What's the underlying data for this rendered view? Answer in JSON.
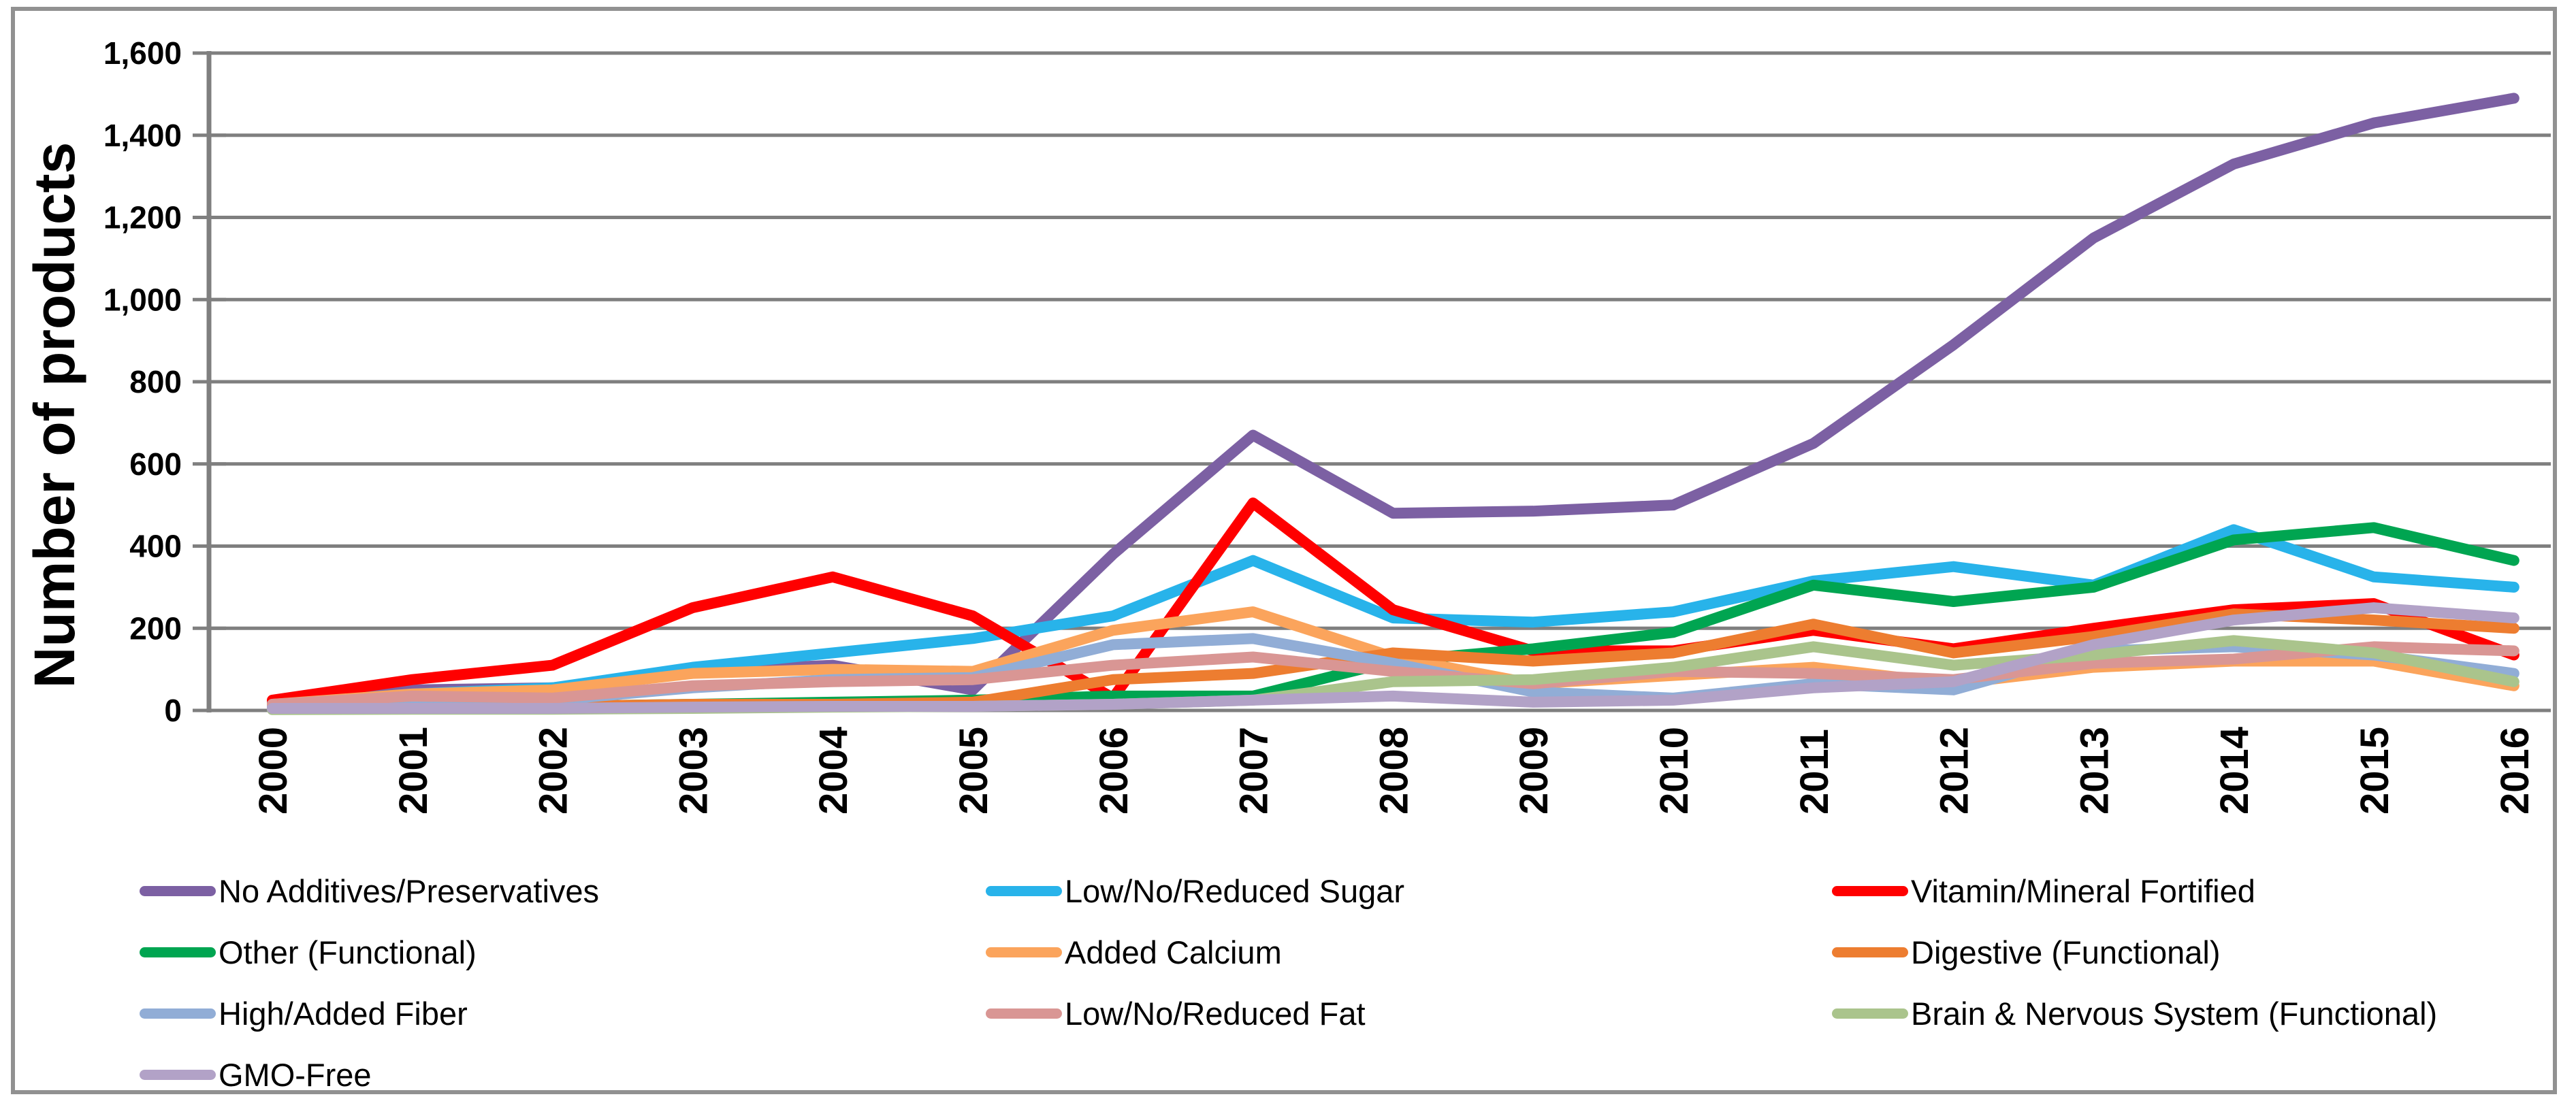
{
  "chart_data": {
    "type": "line",
    "title": "",
    "xlabel": "",
    "ylabel": "Number of products",
    "x": [
      2000,
      2001,
      2002,
      2003,
      2004,
      2005,
      2006,
      2007,
      2008,
      2009,
      2010,
      2011,
      2012,
      2013,
      2014,
      2015,
      2016
    ],
    "x_tick_labels": [
      "2000",
      "2001",
      "2002",
      "2003",
      "2004",
      "2005",
      "2006",
      "2007",
      "2008",
      "2009",
      "2010",
      "2011",
      "2012",
      "2013",
      "2014",
      "2015",
      "2016"
    ],
    "ylim": [
      0,
      1600
    ],
    "y_tick_step": 200,
    "y_tick_values": [
      0,
      200,
      400,
      600,
      800,
      1000,
      1200,
      1400,
      1600
    ],
    "y_tick_labels": [
      "0",
      "200",
      "400",
      "600",
      "800",
      "1,000",
      "1,200",
      "1,400",
      "1,600"
    ],
    "grid": true,
    "legend_position": "bottom",
    "colors": {
      "grid": "#7F7F7F",
      "axis": "#7F7F7F",
      "text": "#000000"
    },
    "series": [
      {
        "name": "No Additives/Preservatives",
        "color": "#7C60A3",
        "values": [
          20,
          50,
          55,
          95,
          110,
          50,
          380,
          670,
          480,
          485,
          500,
          650,
          890,
          1150,
          1330,
          1430,
          1490
        ]
      },
      {
        "name": "Low/No/Reduced Sugar",
        "color": "#28B3EA",
        "values": [
          15,
          40,
          55,
          105,
          140,
          175,
          230,
          365,
          225,
          215,
          240,
          315,
          350,
          305,
          440,
          325,
          300
        ]
      },
      {
        "name": "Vitamin/Mineral Fortified",
        "color": "#FF0000",
        "values": [
          25,
          75,
          110,
          250,
          325,
          230,
          30,
          505,
          245,
          145,
          145,
          195,
          150,
          200,
          245,
          260,
          135
        ]
      },
      {
        "name": "Other (Functional)",
        "color": "#00A551",
        "values": [
          5,
          10,
          10,
          15,
          20,
          25,
          35,
          35,
          120,
          150,
          190,
          305,
          265,
          300,
          415,
          445,
          365
        ]
      },
      {
        "name": "Added Calcium",
        "color": "#FBA45C",
        "values": [
          15,
          40,
          50,
          90,
          100,
          95,
          195,
          240,
          130,
          65,
          85,
          105,
          65,
          105,
          120,
          120,
          60
        ]
      },
      {
        "name": "Digestive (Functional)",
        "color": "#ED7D30",
        "values": [
          5,
          10,
          10,
          15,
          15,
          20,
          75,
          90,
          140,
          120,
          140,
          210,
          140,
          180,
          235,
          220,
          200
        ]
      },
      {
        "name": "High/Added Fiber",
        "color": "#91ADD6",
        "values": [
          10,
          20,
          25,
          55,
          75,
          80,
          160,
          175,
          115,
          45,
          30,
          65,
          50,
          145,
          155,
          135,
          90
        ]
      },
      {
        "name": "Low/No/Reduced Fat",
        "color": "#D99694",
        "values": [
          15,
          35,
          30,
          60,
          70,
          75,
          110,
          130,
          95,
          65,
          95,
          90,
          75,
          115,
          125,
          155,
          145
        ]
      },
      {
        "name": "Brain & Nervous System (Functional)",
        "color": "#AAC48C",
        "values": [
          2,
          3,
          3,
          5,
          8,
          10,
          15,
          25,
          70,
          75,
          105,
          155,
          110,
          135,
          170,
          140,
          70
        ]
      },
      {
        "name": "GMO-Free",
        "color": "#B2A2C7",
        "values": [
          5,
          5,
          5,
          8,
          10,
          10,
          15,
          25,
          35,
          20,
          25,
          55,
          70,
          160,
          220,
          250,
          225
        ]
      }
    ]
  }
}
